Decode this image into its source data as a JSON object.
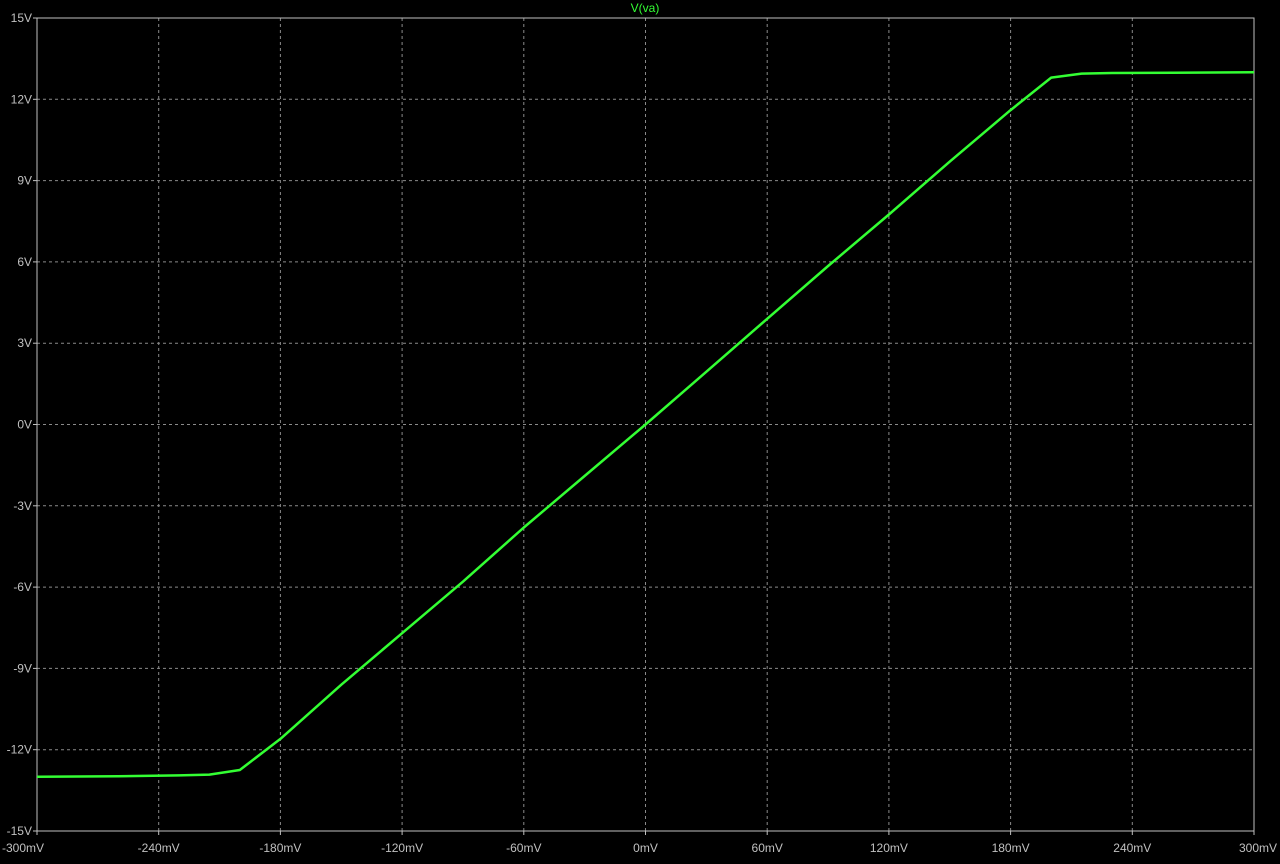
{
  "chart_data": {
    "type": "line",
    "title": "V(va)",
    "xlabel": "",
    "ylabel": "",
    "xlim": [
      -300,
      300
    ],
    "ylim": [
      -15,
      15
    ],
    "grid": true,
    "background": "#000000",
    "grid_color": "#8a8a8a",
    "axis_color": "#c0c0c0",
    "x_ticks": [
      {
        "value": -300,
        "label": "-300mV"
      },
      {
        "value": -240,
        "label": "-240mV"
      },
      {
        "value": -180,
        "label": "-180mV"
      },
      {
        "value": -120,
        "label": "-120mV"
      },
      {
        "value": -60,
        "label": "-60mV"
      },
      {
        "value": 0,
        "label": "0mV"
      },
      {
        "value": 60,
        "label": "60mV"
      },
      {
        "value": 120,
        "label": "120mV"
      },
      {
        "value": 180,
        "label": "180mV"
      },
      {
        "value": 240,
        "label": "240mV"
      },
      {
        "value": 300,
        "label": "300mV"
      }
    ],
    "y_ticks": [
      {
        "value": 15,
        "label": "15V"
      },
      {
        "value": 12,
        "label": "12V"
      },
      {
        "value": 9,
        "label": "9V"
      },
      {
        "value": 6,
        "label": "6V"
      },
      {
        "value": 3,
        "label": "3V"
      },
      {
        "value": 0,
        "label": "0V"
      },
      {
        "value": -3,
        "label": "-3V"
      },
      {
        "value": -6,
        "label": "-6V"
      },
      {
        "value": -9,
        "label": "-9V"
      },
      {
        "value": -12,
        "label": "-12V"
      },
      {
        "value": -15,
        "label": "-15V"
      }
    ],
    "series": [
      {
        "name": "V(va)",
        "color": "#33ff33",
        "x": [
          -300,
          -260,
          -230,
          -215,
          -200,
          -180,
          -150,
          -120,
          -90,
          -60,
          -30,
          0,
          30,
          60,
          90,
          120,
          150,
          180,
          200,
          215,
          230,
          260,
          300
        ],
        "y": [
          -13.0,
          -12.98,
          -12.95,
          -12.92,
          -12.75,
          -11.6,
          -9.6,
          -7.7,
          -5.8,
          -3.8,
          -1.9,
          0,
          1.95,
          3.9,
          5.85,
          7.75,
          9.7,
          11.6,
          12.8,
          12.95,
          12.97,
          12.98,
          13.0
        ]
      }
    ]
  }
}
